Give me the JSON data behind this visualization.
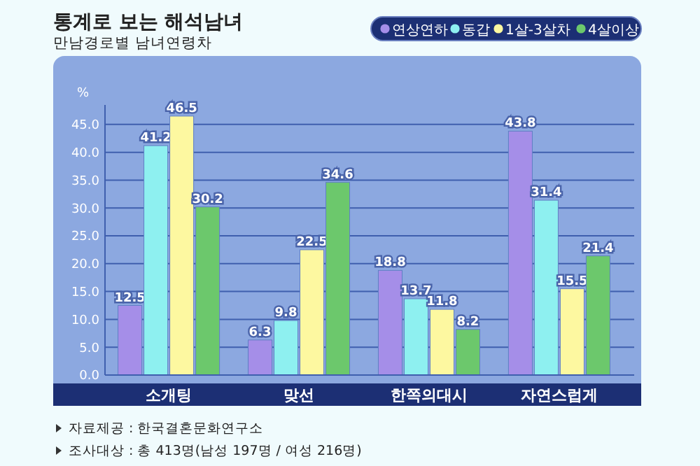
{
  "chart_data": {
    "type": "bar",
    "title": "통계로 보는 해석남녀",
    "subtitle": "만남경로별 남녀연령차",
    "ylabel": "%",
    "categories": [
      "소개팅",
      "맞선",
      "한쪽의대시",
      "자연스럽게"
    ],
    "series": [
      {
        "name": "연상연하",
        "color": "#a58ee8",
        "values": [
          12.5,
          6.3,
          18.8,
          43.8
        ]
      },
      {
        "name": "동갑",
        "color": "#8ef0f0",
        "values": [
          41.2,
          9.8,
          13.7,
          31.4
        ]
      },
      {
        "name": "1살-3살차",
        "color": "#fdf8a0",
        "values": [
          46.5,
          22.5,
          11.8,
          15.5
        ]
      },
      {
        "name": "4살이상",
        "color": "#6cc86c",
        "values": [
          30.2,
          34.6,
          8.2,
          21.4
        ]
      }
    ],
    "ylim": [
      0,
      48.5
    ],
    "yticks": [
      {
        "value": 0,
        "label": "0.0"
      },
      {
        "value": 5,
        "label": "5.0"
      },
      {
        "value": 10,
        "label": "10.0"
      },
      {
        "value": 15,
        "label": "15.0"
      },
      {
        "value": 20,
        "label": "20.0"
      },
      {
        "value": 25,
        "label": "25.0"
      },
      {
        "value": 30,
        "label": "30.0"
      },
      {
        "value": 35,
        "label": "35.0"
      },
      {
        "value": 40,
        "label": "40.0"
      },
      {
        "value": 45,
        "label": "45.0"
      }
    ],
    "grid": "y",
    "legend": "top right",
    "data_labels": true,
    "annotations": [
      "자료제공 : 한국결혼문화연구소",
      "조사대상 : 총 413명(남성 197명 / 여성 216명)"
    ]
  }
}
